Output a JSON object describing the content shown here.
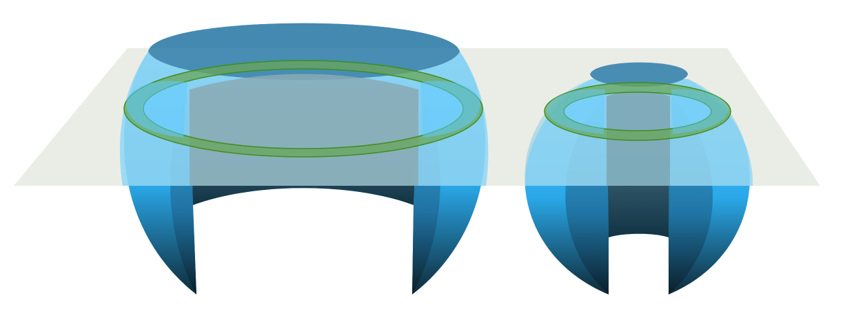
{
  "figure": {
    "kind": "3d-illustration",
    "objects": [
      "large-cut-sphere",
      "small-cut-sphere"
    ],
    "colors": {
      "background": "#ffffff",
      "plane": "#e8eae4",
      "sphere_light": "#6fd0ff",
      "sphere_mid": "#2aa8e8",
      "sphere_dark": "#0f2530",
      "cap": "#4589b0",
      "ring_fill": "#6aa55a",
      "ring_stroke": "#3d8f1e"
    }
  }
}
